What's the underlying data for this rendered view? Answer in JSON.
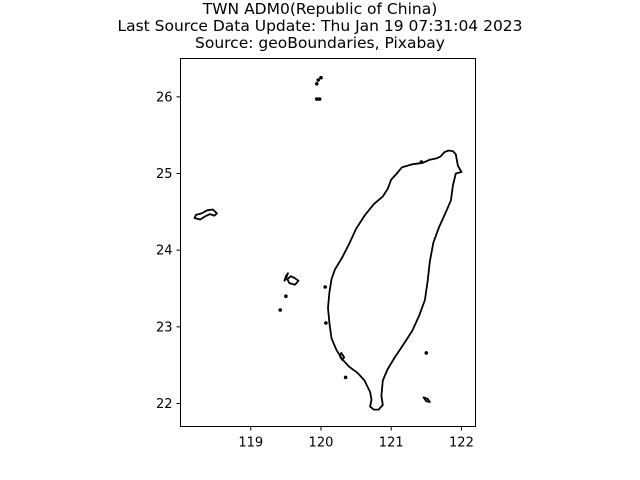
{
  "title": {
    "line1": "TWN ADM0(Republic of China)",
    "line2": "Last Source Data Update: Thu Jan 19 07:31:04 2023",
    "line3": "Source: geoBoundaries, Pixabay"
  },
  "chart_data": {
    "type": "map",
    "xlim": [
      118.0,
      122.2
    ],
    "ylim": [
      21.7,
      26.5
    ],
    "x_ticks": [
      119,
      120,
      121,
      122
    ],
    "y_ticks": [
      22,
      23,
      24,
      25,
      26
    ],
    "grid": false,
    "outline_color": "#000000",
    "shapes": [
      {
        "name": "main-island",
        "points": [
          [
            121.92,
            25.25
          ],
          [
            121.88,
            25.29
          ],
          [
            121.82,
            25.3
          ],
          [
            121.76,
            25.28
          ],
          [
            121.7,
            25.22
          ],
          [
            121.65,
            25.2
          ],
          [
            121.55,
            25.18
          ],
          [
            121.45,
            25.14
          ],
          [
            121.3,
            25.12
          ],
          [
            121.15,
            25.08
          ],
          [
            121.08,
            25.0
          ],
          [
            121.0,
            24.92
          ],
          [
            120.95,
            24.8
          ],
          [
            120.88,
            24.7
          ],
          [
            120.75,
            24.6
          ],
          [
            120.62,
            24.45
          ],
          [
            120.5,
            24.28
          ],
          [
            120.4,
            24.08
          ],
          [
            120.3,
            23.9
          ],
          [
            120.2,
            23.75
          ],
          [
            120.15,
            23.62
          ],
          [
            120.12,
            23.45
          ],
          [
            120.1,
            23.25
          ],
          [
            120.12,
            23.05
          ],
          [
            120.15,
            22.85
          ],
          [
            120.22,
            22.7
          ],
          [
            120.3,
            22.58
          ],
          [
            120.4,
            22.48
          ],
          [
            120.52,
            22.4
          ],
          [
            120.62,
            22.3
          ],
          [
            120.7,
            22.15
          ],
          [
            120.72,
            22.05
          ],
          [
            120.7,
            21.96
          ],
          [
            120.75,
            21.92
          ],
          [
            120.82,
            21.92
          ],
          [
            120.88,
            21.98
          ],
          [
            120.86,
            22.1
          ],
          [
            120.88,
            22.3
          ],
          [
            120.95,
            22.45
          ],
          [
            121.05,
            22.6
          ],
          [
            121.18,
            22.78
          ],
          [
            121.3,
            22.95
          ],
          [
            121.4,
            23.15
          ],
          [
            121.48,
            23.35
          ],
          [
            121.52,
            23.6
          ],
          [
            121.55,
            23.85
          ],
          [
            121.6,
            24.1
          ],
          [
            121.68,
            24.3
          ],
          [
            121.78,
            24.5
          ],
          [
            121.85,
            24.65
          ],
          [
            121.88,
            24.85
          ],
          [
            121.92,
            25.0
          ],
          [
            122.0,
            25.02
          ],
          [
            121.95,
            25.1
          ],
          [
            121.92,
            25.25
          ]
        ]
      },
      {
        "name": "kinmen",
        "points": [
          [
            118.2,
            24.42
          ],
          [
            118.28,
            24.4
          ],
          [
            118.35,
            24.44
          ],
          [
            118.42,
            24.47
          ],
          [
            118.48,
            24.45
          ],
          [
            118.52,
            24.48
          ],
          [
            118.46,
            24.53
          ],
          [
            118.38,
            24.52
          ],
          [
            118.3,
            24.48
          ],
          [
            118.22,
            24.46
          ],
          [
            118.2,
            24.42
          ]
        ]
      },
      {
        "name": "penghu-main",
        "points": [
          [
            119.52,
            23.62
          ],
          [
            119.55,
            23.57
          ],
          [
            119.63,
            23.55
          ],
          [
            119.68,
            23.6
          ],
          [
            119.62,
            23.64
          ],
          [
            119.57,
            23.66
          ],
          [
            119.52,
            23.62
          ]
        ]
      },
      {
        "name": "penghu-north",
        "points": [
          [
            119.48,
            23.6
          ],
          [
            119.5,
            23.66
          ],
          [
            119.53,
            23.7
          ],
          [
            119.5,
            23.63
          ],
          [
            119.48,
            23.6
          ]
        ]
      },
      {
        "name": "green-island",
        "points": [
          [
            121.46,
            22.08
          ],
          [
            121.52,
            22.06
          ],
          [
            121.55,
            22.02
          ],
          [
            121.5,
            22.03
          ],
          [
            121.46,
            22.08
          ]
        ]
      },
      {
        "name": "liuqiu",
        "points": [
          [
            120.27,
            22.62
          ],
          [
            120.3,
            22.57
          ],
          [
            120.33,
            22.6
          ],
          [
            120.29,
            22.66
          ],
          [
            120.27,
            22.62
          ]
        ]
      }
    ],
    "islets": [
      [
        119.96,
        26.22
      ],
      [
        120.0,
        26.25
      ],
      [
        119.94,
        26.17
      ],
      [
        119.98,
        25.97
      ],
      [
        119.94,
        25.97
      ],
      [
        119.42,
        23.22
      ],
      [
        119.5,
        23.4
      ],
      [
        120.35,
        22.34
      ],
      [
        121.5,
        22.66
      ],
      [
        120.07,
        23.05
      ],
      [
        120.06,
        23.52
      ],
      [
        121.43,
        25.15
      ]
    ]
  }
}
